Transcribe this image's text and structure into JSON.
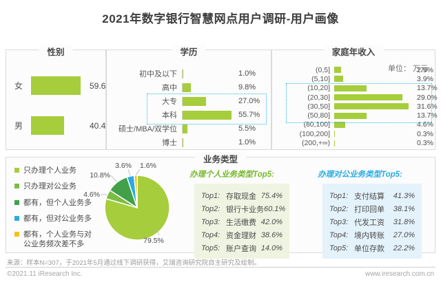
{
  "page": {
    "title": "2021年数字银行智慧网点用户调研-用户画像"
  },
  "chart_data": [
    {
      "type": "bar",
      "title": "性别",
      "orientation": "horizontal",
      "categories": [
        "女",
        "男"
      ],
      "values": [
        59.6,
        40.4
      ],
      "unit": "%",
      "xlim": [
        0,
        65
      ],
      "grid": false
    },
    {
      "type": "bar",
      "title": "学历",
      "orientation": "horizontal",
      "categories": [
        "初中及以下",
        "高中",
        "大专",
        "本科",
        "硕士/MBA/双学位",
        "博士"
      ],
      "values": [
        1.0,
        9.8,
        27.0,
        55.7,
        5.5,
        1.0
      ],
      "highlighted_categories": [
        "大专",
        "本科"
      ],
      "unit": "%",
      "xlim": [
        0,
        60
      ],
      "grid": false
    },
    {
      "type": "bar",
      "title": "家庭年收入",
      "unit_note": "单位： 万元",
      "orientation": "horizontal",
      "categories": [
        "(0,5]",
        "(5,10]",
        "(10,20]",
        "(20,30]",
        "(30,50]",
        "(50,80]",
        "(80,100]",
        "(100,200]",
        "(200,+∞)"
      ],
      "values": [
        2.9,
        3.9,
        13.7,
        29.0,
        31.6,
        13.7,
        4.6,
        0.3,
        0.3
      ],
      "highlighted_categories": [
        "(10,20]",
        "(20,30]",
        "(30,50]",
        "(50,80]"
      ],
      "unit": "%",
      "xlim": [
        0,
        34
      ],
      "grid": false
    },
    {
      "type": "pie",
      "title": "业务类型",
      "labels": [
        "只办理个人业务",
        "只办理对公业务",
        "都有，但个人业务多",
        "都有，但对公业务多",
        "都有，个人业务与对公业务频次差不多"
      ],
      "values": [
        79.5,
        4.6,
        10.8,
        3.6,
        1.6
      ],
      "unit": "%",
      "colors": [
        "#a6cd3b",
        "#7bbd44",
        "#41a048",
        "#29abe2",
        "#f2c318"
      ],
      "legend_position": "left",
      "start_angle_deg": 0,
      "direction": "clockwise"
    },
    {
      "type": "table",
      "title": "办理个人业务类型Top5:",
      "accent_color": "#76b82a",
      "rows": [
        {
          "rank": "Top1:",
          "name": "存取现金",
          "value": "75.4%"
        },
        {
          "rank": "Top2:",
          "name": "银行卡业务",
          "value": "60.1%"
        },
        {
          "rank": "Top3:",
          "name": "生活缴费",
          "value": "42.0%"
        },
        {
          "rank": "Top4:",
          "name": "资金理财",
          "value": "38.6%"
        },
        {
          "rank": "Top5:",
          "name": "账户查询",
          "value": "14.0%"
        }
      ]
    },
    {
      "type": "table",
      "title": "办理对公业务类型Top5:",
      "accent_color": "#29abe2",
      "rows": [
        {
          "rank": "Top1:",
          "name": "支付结算",
          "value": "41.3%"
        },
        {
          "rank": "Top2:",
          "name": "打印回单",
          "value": "38.1%"
        },
        {
          "rank": "Top3:",
          "name": "代发工资",
          "value": "31.8%"
        },
        {
          "rank": "Top4:",
          "name": "境内转账",
          "value": "27.0%"
        },
        {
          "rank": "Top5:",
          "name": "单位存款",
          "value": "22.2%"
        }
      ]
    }
  ],
  "colors": {
    "bar_green": "#a6cd3b",
    "pie_green_light": "#a6cd3b",
    "pie_green_medium": "#7bbd44",
    "pie_green_dark": "#41a048",
    "pie_blue": "#29abe2",
    "pie_yellow": "#f2c318",
    "highlight_border": "#2ab3e8",
    "personal_accent": "#76b82a",
    "corporate_accent": "#29abe2",
    "personal_box_bg": "#eef4e1",
    "corporate_box_bg": "#e4f2fb"
  },
  "footer": {
    "source": "来源：样本N=307，于2021年5月通过线下调研获得，艾瑞咨询研究院自主研究及绘制。",
    "copyright": "©2021.11 iResearch Inc.",
    "website": "www.iresearch.com.cn"
  }
}
